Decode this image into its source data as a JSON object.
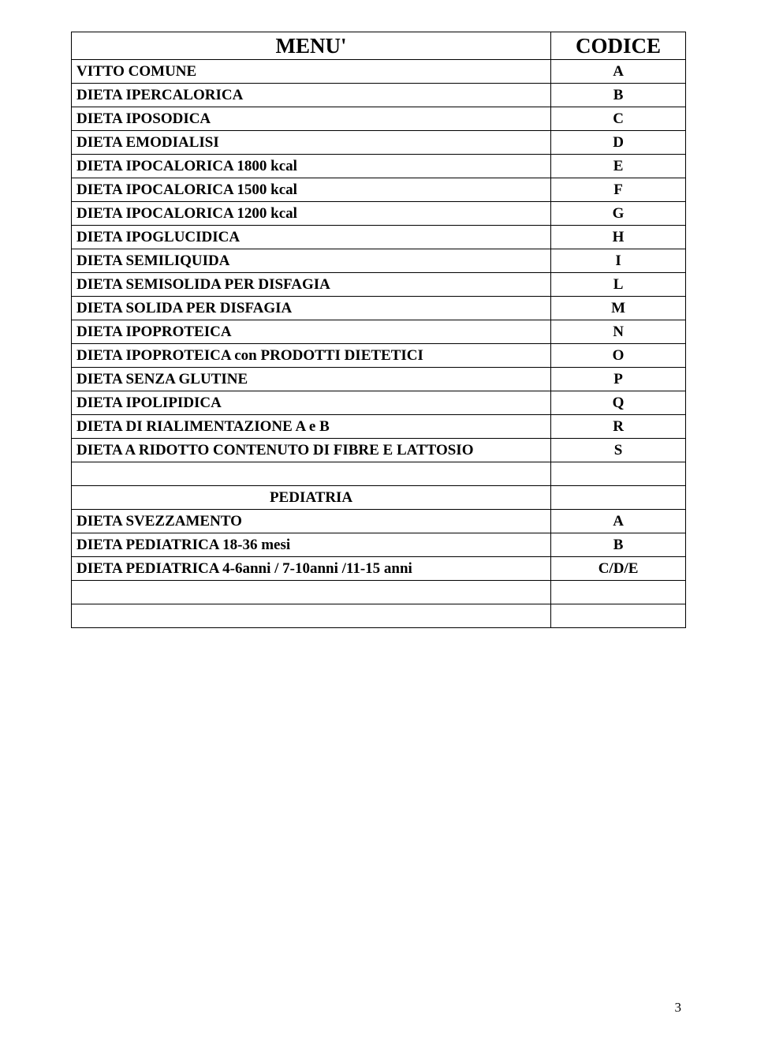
{
  "page": {
    "background_color": "#ffffff",
    "text_color": "#000000",
    "border_color": "#000000",
    "font_family": "Times New Roman",
    "number": "3"
  },
  "table": {
    "header": {
      "menu": "MENU'",
      "codice": "CODICE"
    },
    "columns": [
      "menu",
      "codice"
    ],
    "col_widths_pct": [
      79,
      21
    ],
    "header_fontsize": 27,
    "row_fontsize": 19,
    "rows": [
      {
        "menu": "VITTO COMUNE",
        "codice": "A"
      },
      {
        "menu": "DIETA IPERCALORICA",
        "codice": "B"
      },
      {
        "menu": "DIETA IPOSODICA",
        "codice": "C"
      },
      {
        "menu": "DIETA EMODIALISI",
        "codice": "D"
      },
      {
        "menu": "DIETA IPOCALORICA 1800 kcal",
        "codice": "E"
      },
      {
        "menu": "DIETA IPOCALORICA 1500 kcal",
        "codice": "F"
      },
      {
        "menu": "DIETA IPOCALORICA 1200 kcal",
        "codice": "G"
      },
      {
        "menu": "DIETA IPOGLUCIDICA",
        "codice": "H"
      },
      {
        "menu": "DIETA SEMILIQUIDA",
        "codice": "I"
      },
      {
        "menu": "DIETA SEMISOLIDA PER DISFAGIA",
        "codice": "L"
      },
      {
        "menu": "DIETA SOLIDA PER DISFAGIA",
        "codice": "M"
      },
      {
        "menu": "DIETA IPOPROTEICA",
        "codice": "N"
      },
      {
        "menu": "DIETA IPOPROTEICA con PRODOTTI DIETETICI",
        "codice": "O"
      },
      {
        "menu": "DIETA SENZA GLUTINE",
        "codice": "P"
      },
      {
        "menu": "DIETA IPOLIPIDICA",
        "codice": "Q"
      },
      {
        "menu": "DIETA DI RIALIMENTAZIONE A e B",
        "codice": "R"
      },
      {
        "menu": "DIETA A RIDOTTO CONTENUTO DI FIBRE E LATTOSIO",
        "codice": "S"
      }
    ],
    "section2_header": "PEDIATRIA",
    "rows2": [
      {
        "menu": "DIETA SVEZZAMENTO",
        "codice": "A"
      },
      {
        "menu": "DIETA PEDIATRICA   18-36 mesi",
        "codice": "B"
      },
      {
        "menu": "DIETA PEDIATRICA   4-6anni / 7-10anni /11-15 anni",
        "codice": "C/D/E"
      }
    ]
  }
}
